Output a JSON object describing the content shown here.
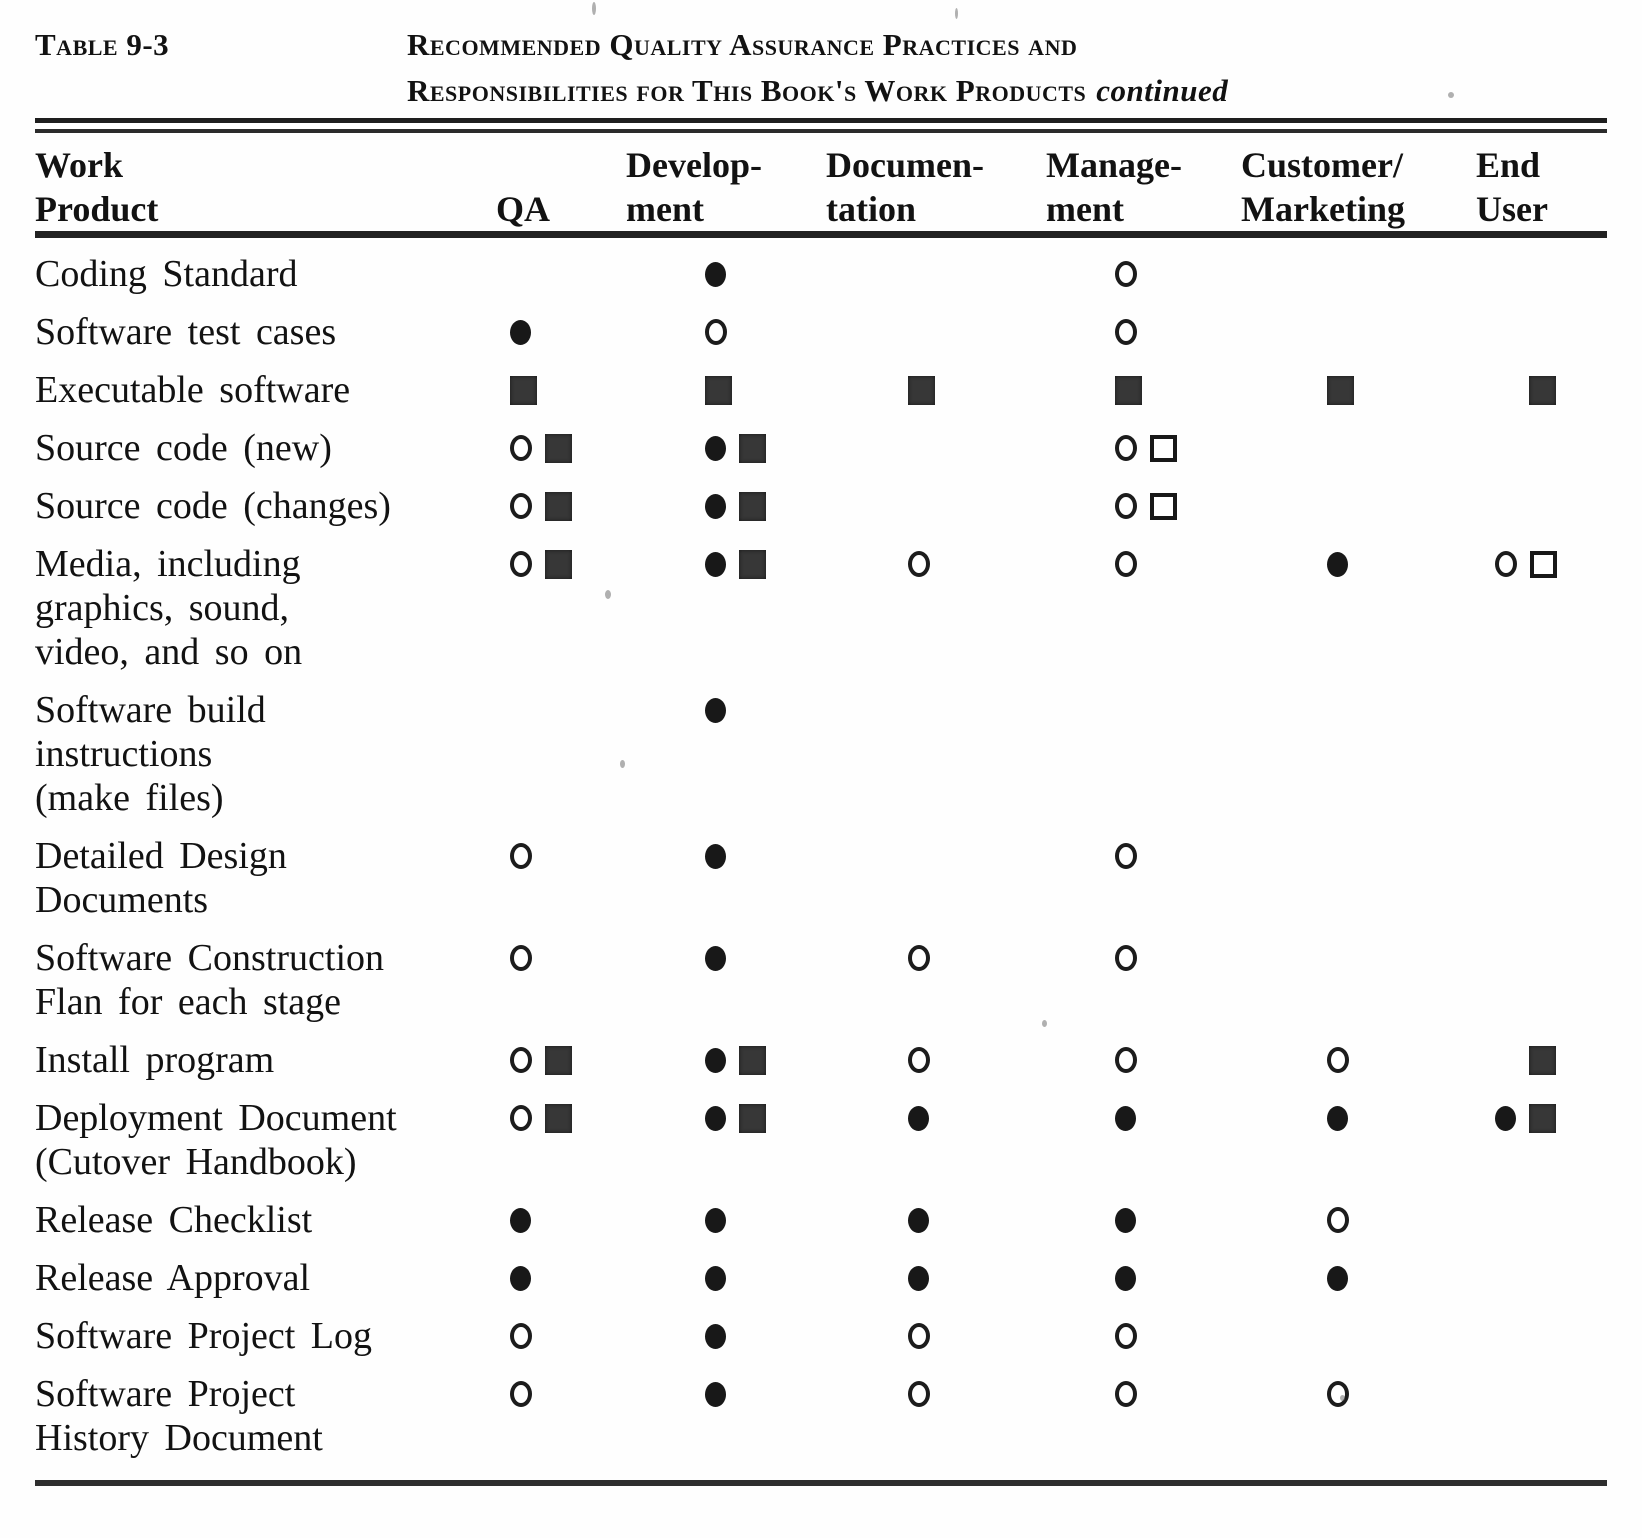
{
  "caption": {
    "label": "Table 9-3",
    "title_line1": "Recommended Quality Assurance Practices and",
    "title_line2": "Responsibilities for This Book's Work Products",
    "continued": "continued"
  },
  "symbols": {
    "filled-circle": "●",
    "open-circle": "○",
    "filled-square": "■",
    "open-square": "□"
  },
  "table": {
    "columns": [
      {
        "id": "work_product",
        "line1": "Work",
        "line2": "Product"
      },
      {
        "id": "qa",
        "line1": "",
        "line2": "QA"
      },
      {
        "id": "development",
        "line1": "Develop-",
        "line2": "ment"
      },
      {
        "id": "documentation",
        "line1": "Documen-",
        "line2": "tation"
      },
      {
        "id": "management",
        "line1": "Manage-",
        "line2": "ment"
      },
      {
        "id": "customer_marketing",
        "line1": "Customer/",
        "line2": "Marketing"
      },
      {
        "id": "end_user",
        "line1": "End",
        "line2": "User"
      }
    ],
    "rows": [
      {
        "label_lines": [
          "Coding Standard"
        ],
        "cells": [
          [],
          [
            "filled-circle"
          ],
          [],
          [
            "open-circle"
          ],
          [],
          []
        ]
      },
      {
        "label_lines": [
          "Software test cases"
        ],
        "cells": [
          [
            "filled-circle"
          ],
          [
            "open-circle"
          ],
          [],
          [
            "open-circle"
          ],
          [],
          []
        ]
      },
      {
        "label_lines": [
          "Executable software"
        ],
        "cells": [
          [
            "filled-square"
          ],
          [
            "filled-square"
          ],
          [
            "filled-square"
          ],
          [
            "filled-square"
          ],
          [
            "filled-square"
          ],
          [
            "filled-square"
          ]
        ]
      },
      {
        "label_lines": [
          "Source code (new)"
        ],
        "cells": [
          [
            "open-circle",
            "filled-square"
          ],
          [
            "filled-circle",
            "filled-square"
          ],
          [],
          [
            "open-circle",
            "open-square"
          ],
          [],
          []
        ]
      },
      {
        "label_lines": [
          "Source code (changes)"
        ],
        "cells": [
          [
            "open-circle",
            "filled-square"
          ],
          [
            "filled-circle",
            "filled-square"
          ],
          [],
          [
            "open-circle",
            "open-square"
          ],
          [],
          []
        ]
      },
      {
        "label_lines": [
          "Media, including",
          "graphics, sound,",
          "video, and so on"
        ],
        "cells": [
          [
            "open-circle",
            "filled-square"
          ],
          [
            "filled-circle",
            "filled-square"
          ],
          [
            "open-circle"
          ],
          [
            "open-circle"
          ],
          [
            "filled-circle"
          ],
          [
            "open-circle",
            "open-square"
          ]
        ]
      },
      {
        "label_lines": [
          "Software build",
          "instructions",
          "(make files)"
        ],
        "cells": [
          [],
          [
            "filled-circle"
          ],
          [],
          [],
          [],
          []
        ]
      },
      {
        "label_lines": [
          "Detailed Design",
          "Documents"
        ],
        "cells": [
          [
            "open-circle"
          ],
          [
            "filled-circle"
          ],
          [],
          [
            "open-circle"
          ],
          [],
          []
        ]
      },
      {
        "label_lines": [
          "Software Construction",
          "Flan for each stage"
        ],
        "cells": [
          [
            "open-circle"
          ],
          [
            "filled-circle"
          ],
          [
            "open-circle"
          ],
          [
            "open-circle"
          ],
          [],
          []
        ]
      },
      {
        "label_lines": [
          "Install program"
        ],
        "cells": [
          [
            "open-circle",
            "filled-square"
          ],
          [
            "filled-circle",
            "filled-square"
          ],
          [
            "open-circle"
          ],
          [
            "open-circle"
          ],
          [
            "open-circle"
          ],
          [
            "filled-square"
          ]
        ]
      },
      {
        "label_lines": [
          "Deployment Document",
          "(Cutover Handbook)"
        ],
        "cells": [
          [
            "open-circle",
            "filled-square"
          ],
          [
            "filled-circle",
            "filled-square"
          ],
          [
            "filled-circle"
          ],
          [
            "filled-circle"
          ],
          [
            "filled-circle"
          ],
          [
            "filled-circle",
            "filled-square"
          ]
        ]
      },
      {
        "label_lines": [
          "Release Checklist"
        ],
        "cells": [
          [
            "filled-circle"
          ],
          [
            "filled-circle"
          ],
          [
            "filled-circle"
          ],
          [
            "filled-circle"
          ],
          [
            "open-circle"
          ],
          []
        ]
      },
      {
        "label_lines": [
          "Release Approval"
        ],
        "cells": [
          [
            "filled-circle"
          ],
          [
            "filled-circle"
          ],
          [
            "filled-circle"
          ],
          [
            "filled-circle"
          ],
          [
            "filled-circle"
          ],
          []
        ]
      },
      {
        "label_lines": [
          "Software Project Log"
        ],
        "cells": [
          [
            "open-circle"
          ],
          [
            "filled-circle"
          ],
          [
            "open-circle"
          ],
          [
            "open-circle"
          ],
          [],
          []
        ]
      },
      {
        "label_lines": [
          "Software Project",
          "History Document"
        ],
        "cells": [
          [
            "open-circle"
          ],
          [
            "filled-circle"
          ],
          [
            "open-circle"
          ],
          [
            "open-circle"
          ],
          [
            "open-circle"
          ],
          []
        ]
      }
    ]
  }
}
